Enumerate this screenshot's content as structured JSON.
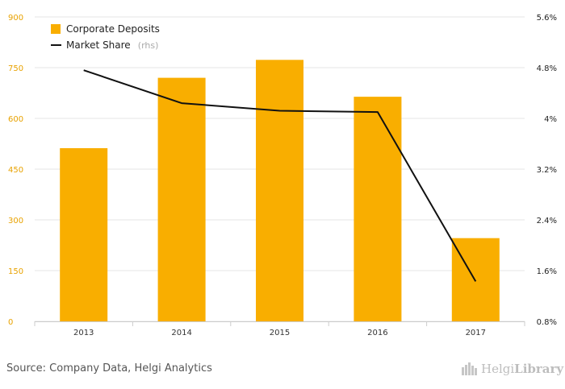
{
  "chart_data": {
    "type": "bar",
    "categories": [
      "2013",
      "2014",
      "2015",
      "2016",
      "2017"
    ],
    "series": [
      {
        "name": "Corporate Deposits",
        "type": "bar",
        "axis": "left",
        "color": "#f9ae00",
        "values": [
          512,
          720,
          773,
          664,
          246
        ]
      },
      {
        "name": "Market Share",
        "type": "line",
        "axis": "right",
        "color": "#111111",
        "values": [
          4.76,
          4.24,
          4.12,
          4.1,
          1.43
        ]
      }
    ],
    "legend": {
      "placement": "top-left",
      "items": [
        {
          "label": "Corporate Deposits",
          "note": ""
        },
        {
          "label": "Market Share",
          "note": "(rhs)"
        }
      ]
    },
    "left_axis": {
      "ylim": [
        0,
        900
      ],
      "ticks": [
        "0",
        "150",
        "300",
        "450",
        "600",
        "750",
        "900"
      ],
      "color": "#e8a200"
    },
    "right_axis": {
      "ylim": [
        0.8,
        5.6
      ],
      "ticks": [
        "0.8%",
        "1.6%",
        "2.4%",
        "3.2%",
        "4%",
        "4.8%",
        "5.6%"
      ]
    },
    "grid": true
  },
  "footer": {
    "source": "Source: Company Data, Helgi Analytics",
    "logo_light": "Helgi",
    "logo_bold": "Library"
  }
}
